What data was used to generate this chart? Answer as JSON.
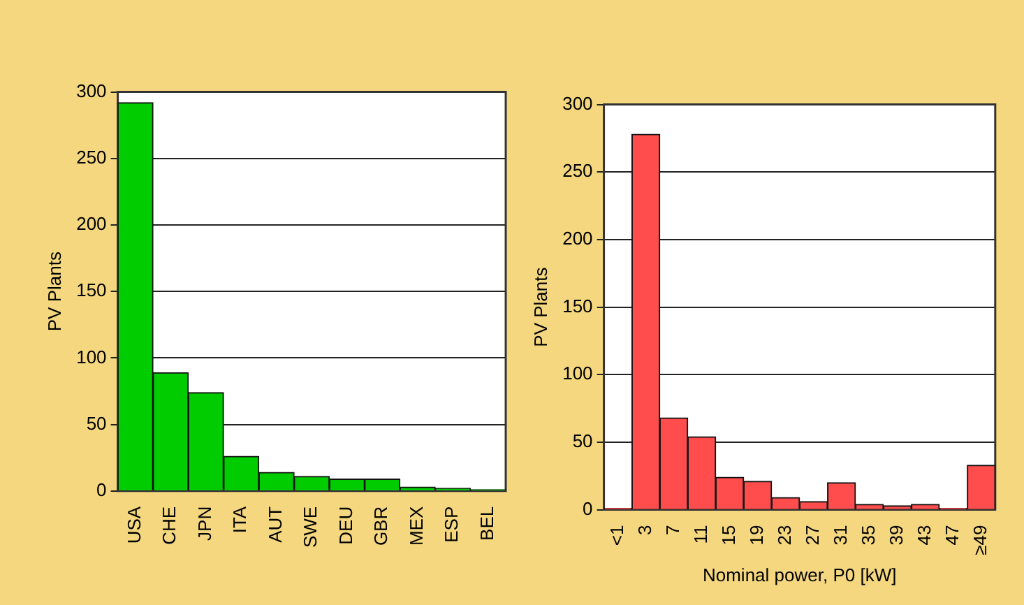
{
  "chart_data": [
    {
      "type": "bar",
      "ylabel": "PV Plants",
      "categories": [
        "USA",
        "CHE",
        "JPN",
        "ITA",
        "AUT",
        "SWE",
        "DEU",
        "GBR",
        "MEX",
        "ESP",
        "BEL"
      ],
      "values": [
        292,
        89,
        74,
        26,
        14,
        11,
        9,
        9,
        3,
        2,
        1
      ],
      "color": "#00cc00",
      "ylim": [
        0,
        300
      ],
      "yticks": [
        0,
        50,
        100,
        150,
        200,
        250,
        300
      ],
      "grid": "y",
      "legend": false
    },
    {
      "type": "bar",
      "ylabel": "PV Plants",
      "xlabel": "Nominal power, P0 [kW]",
      "categories": [
        "<1",
        "3",
        "7",
        "11",
        "15",
        "19",
        "23",
        "27",
        "31",
        "35",
        "39",
        "43",
        "47",
        "≥49"
      ],
      "values": [
        1,
        278,
        68,
        54,
        24,
        21,
        9,
        6,
        20,
        4,
        3,
        4,
        1,
        33
      ],
      "color": "#ff4d4d",
      "ylim": [
        0,
        300
      ],
      "yticks": [
        0,
        50,
        100,
        150,
        200,
        250,
        300
      ],
      "grid": "y",
      "legend": false
    }
  ]
}
